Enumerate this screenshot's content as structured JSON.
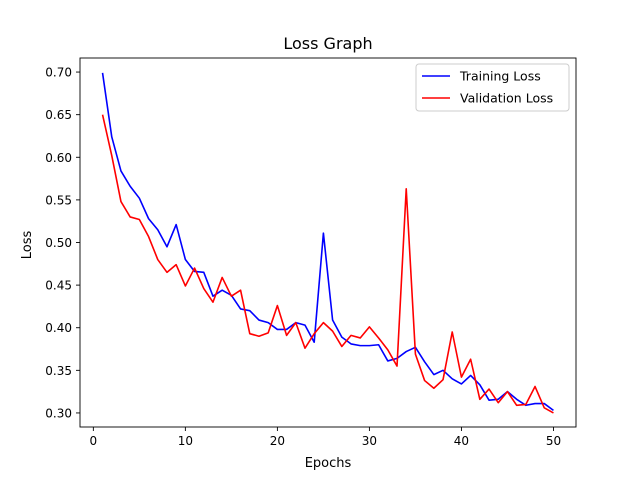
{
  "chart_data": {
    "type": "line",
    "title": "Loss Graph",
    "xlabel": "Epochs",
    "ylabel": "Loss",
    "xlim": [
      -1.45,
      52.45
    ],
    "ylim": [
      0.2835,
      0.7165
    ],
    "xticks": [
      0,
      10,
      20,
      30,
      40,
      50
    ],
    "yticks": [
      0.3,
      0.35,
      0.4,
      0.45,
      0.5,
      0.55,
      0.6,
      0.65,
      0.7
    ],
    "grid": false,
    "legend_position": "top-right",
    "x": [
      1,
      2,
      3,
      4,
      5,
      6,
      7,
      8,
      9,
      10,
      11,
      12,
      13,
      14,
      15,
      16,
      17,
      18,
      19,
      20,
      21,
      22,
      23,
      24,
      25,
      26,
      27,
      28,
      29,
      30,
      31,
      32,
      33,
      34,
      35,
      36,
      37,
      38,
      39,
      40,
      41,
      42,
      43,
      44,
      45,
      46,
      47,
      48,
      49,
      50
    ],
    "series": [
      {
        "name": "Training Loss",
        "color": "#0000ff",
        "values": [
          0.699,
          0.624,
          0.584,
          0.566,
          0.552,
          0.528,
          0.515,
          0.495,
          0.521,
          0.48,
          0.466,
          0.465,
          0.437,
          0.444,
          0.438,
          0.422,
          0.42,
          0.409,
          0.406,
          0.398,
          0.398,
          0.406,
          0.403,
          0.383,
          0.511,
          0.409,
          0.389,
          0.381,
          0.379,
          0.379,
          0.38,
          0.361,
          0.364,
          0.372,
          0.377,
          0.36,
          0.345,
          0.35,
          0.34,
          0.334,
          0.344,
          0.333,
          0.315,
          0.316,
          0.325,
          0.316,
          0.309,
          0.311,
          0.311,
          0.303
        ]
      },
      {
        "name": "Validation Loss",
        "color": "#ff0000",
        "values": [
          0.65,
          0.602,
          0.548,
          0.53,
          0.527,
          0.507,
          0.48,
          0.465,
          0.474,
          0.449,
          0.47,
          0.446,
          0.43,
          0.459,
          0.437,
          0.444,
          0.393,
          0.39,
          0.394,
          0.426,
          0.391,
          0.406,
          0.376,
          0.393,
          0.406,
          0.396,
          0.378,
          0.391,
          0.388,
          0.401,
          0.388,
          0.374,
          0.355,
          0.563,
          0.369,
          0.338,
          0.329,
          0.339,
          0.395,
          0.342,
          0.363,
          0.316,
          0.328,
          0.312,
          0.325,
          0.309,
          0.31,
          0.331,
          0.306,
          0.3
        ]
      }
    ]
  }
}
